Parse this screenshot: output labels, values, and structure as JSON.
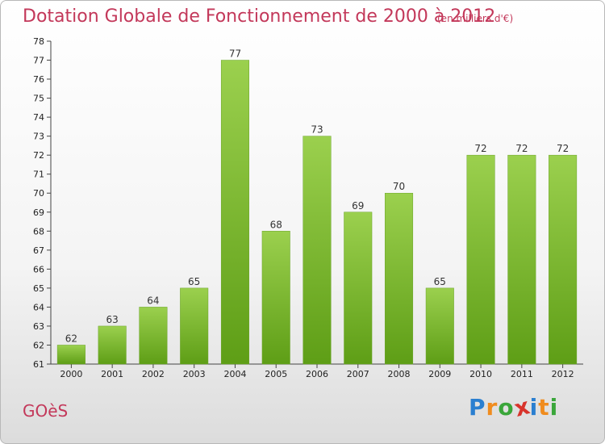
{
  "header": {
    "title": "Dotation Globale de Fonctionnement de 2000 à 2012",
    "subtitle": "(en milliers d'€)"
  },
  "footer": {
    "place": "GOèS",
    "logo_letters": [
      "P",
      "r",
      "o",
      "x",
      "i",
      "t",
      "i"
    ],
    "logo_colors": [
      "#2a7fd0",
      "#f08c1e",
      "#3aa63a",
      "#d8342c",
      "#2a7fd0",
      "#f08c1e",
      "#3aa63a"
    ]
  },
  "chart_data": {
    "type": "bar",
    "categories": [
      "2000",
      "2001",
      "2002",
      "2003",
      "2004",
      "2005",
      "2006",
      "2007",
      "2008",
      "2009",
      "2010",
      "2011",
      "2012"
    ],
    "values": [
      62,
      63,
      64,
      65,
      77,
      68,
      73,
      69,
      70,
      65,
      72,
      72,
      72
    ],
    "ylim": [
      61,
      78
    ],
    "yticks": [
      61,
      62,
      63,
      64,
      65,
      66,
      67,
      68,
      69,
      70,
      71,
      72,
      73,
      74,
      75,
      76,
      77,
      78
    ],
    "grid": false,
    "bar_color_top": "#9bd04e",
    "bar_color_bottom": "#5e9e16"
  }
}
